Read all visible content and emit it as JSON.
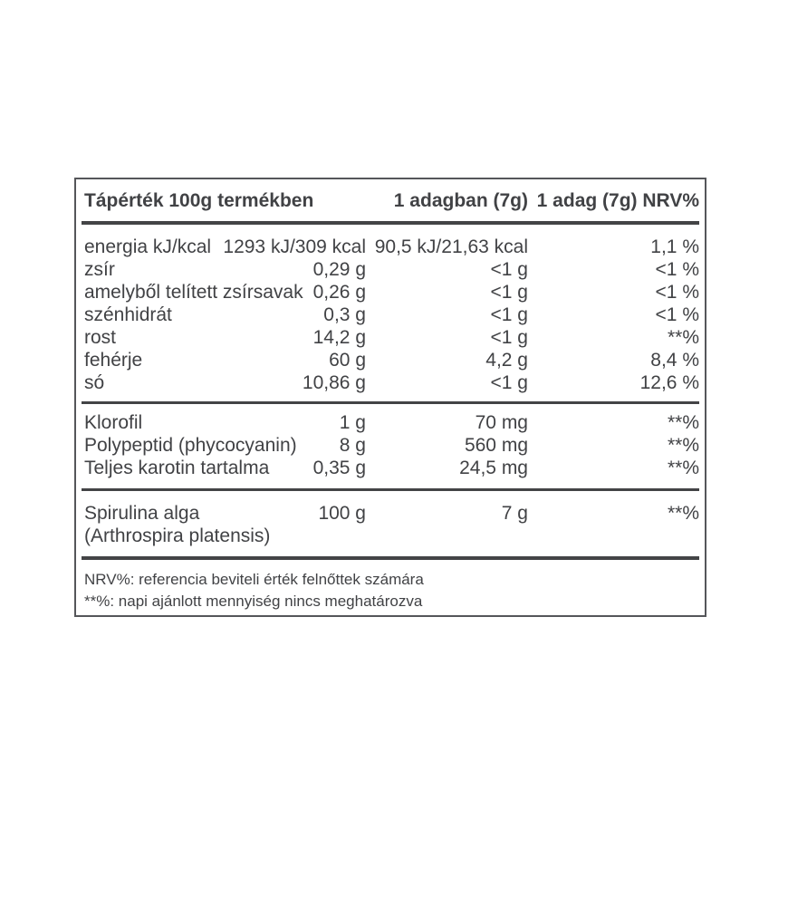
{
  "table": {
    "header": {
      "col_main": "Tápérték 100g termékben",
      "col_serving": "1 adagban (7g)",
      "col_nrv": "1 adag (7g) NRV%"
    },
    "sections": [
      {
        "rows": [
          {
            "label": "energia kJ/kcal",
            "per100": "1293 kJ/309 kcal",
            "per_serving": "90,5 kJ/21,63 kcal",
            "nrv": "1,1 %"
          },
          {
            "label": "zsír",
            "per100": "0,29 g",
            "per_serving": "<1 g",
            "nrv": "<1 %"
          },
          {
            "label": "amelyből telített zsírsavak",
            "per100": "0,26 g",
            "per_serving": "<1 g",
            "nrv": "<1 %"
          },
          {
            "label": "szénhidrát",
            "per100": "0,3 g",
            "per_serving": "<1 g",
            "nrv": "<1 %"
          },
          {
            "label": "rost",
            "per100": "14,2 g",
            "per_serving": "<1 g",
            "nrv": "**%"
          },
          {
            "label": "fehérje",
            "per100": "60 g",
            "per_serving": "4,2 g",
            "nrv": "8,4 %"
          },
          {
            "label": "só",
            "per100": "10,86 g",
            "per_serving": "<1 g",
            "nrv": "12,6 %"
          }
        ]
      },
      {
        "rows": [
          {
            "label": "Klorofil",
            "per100": "1 g",
            "per_serving": "70 mg",
            "nrv": "**%"
          },
          {
            "label": "Polypeptid (phycocyanin)",
            "per100": "8 g",
            "per_serving": "560 mg",
            "nrv": "**%"
          },
          {
            "label": "Teljes karotin tartalma",
            "per100": "0,35 g",
            "per_serving": "24,5 mg",
            "nrv": "**%"
          }
        ]
      },
      {
        "rows": [
          {
            "label": "Spirulina alga",
            "label_line2": "(Arthrospira platensis)",
            "per100": "100 g",
            "per_serving": "7 g",
            "nrv": "**%"
          }
        ]
      }
    ],
    "footnotes": [
      "NRV%: referencia beviteli érték felnőttek számára",
      "**%: napi ajánlott mennyiség nincs meghatározva"
    ],
    "colors": {
      "text": "#414245",
      "line": "#434446",
      "border": "#55565a",
      "background": "#ffffff"
    }
  }
}
